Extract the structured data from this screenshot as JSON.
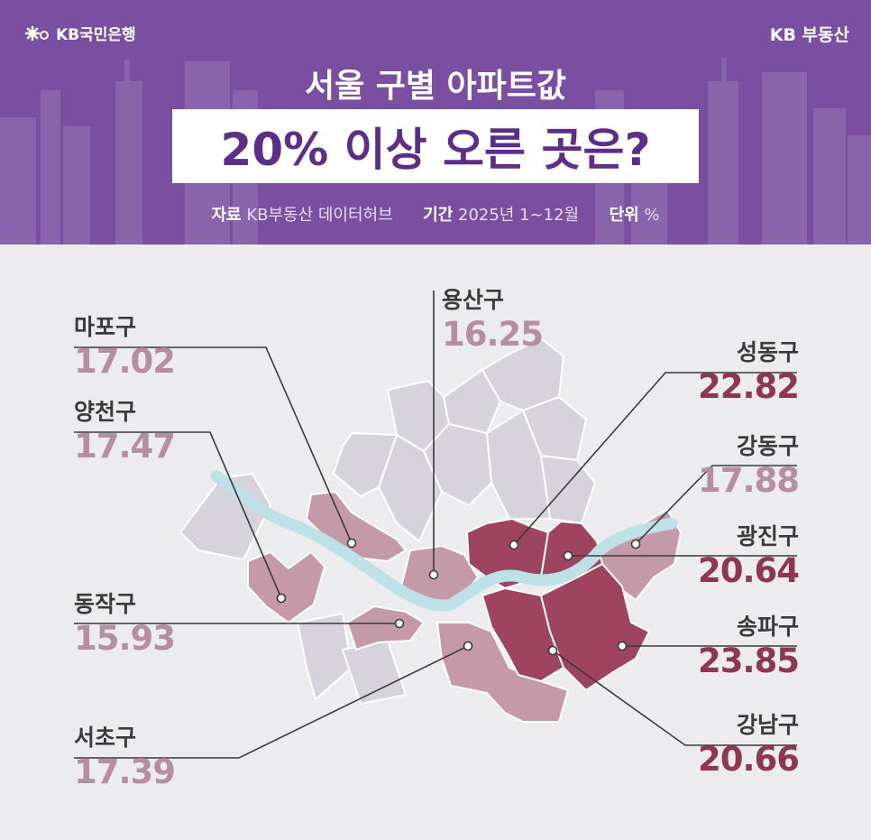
{
  "brand": {
    "left_logo": "KB국민은행",
    "right_logo": "KB 부동산"
  },
  "title": {
    "line1": "서울 구별 아파트값",
    "line2": "20% 이상 오른 곳은?"
  },
  "meta": {
    "source_label": "자료",
    "source": "KB부동산 데이터허브",
    "period_label": "기간",
    "period": "2025년 1~12월",
    "unit_label": "단위",
    "unit": "%"
  },
  "colors": {
    "header_bg": "#7a4fa1",
    "title_text": "#5b2e88",
    "highlight_dark": "#9e4460",
    "highlight_light": "#c49aa8",
    "base_district": "#d6d4da",
    "river": "#bde1e6"
  },
  "chart_data": {
    "type": "map",
    "title": "서울 구별 아파트값 20% 이상 오른 곳은?",
    "unit": "%",
    "districts": [
      {
        "name": "마포구",
        "value": "17.02",
        "tier": "light"
      },
      {
        "name": "양천구",
        "value": "17.47",
        "tier": "light"
      },
      {
        "name": "용산구",
        "value": "16.25",
        "tier": "light"
      },
      {
        "name": "동작구",
        "value": "15.93",
        "tier": "light"
      },
      {
        "name": "서초구",
        "value": "17.39",
        "tier": "light"
      },
      {
        "name": "성동구",
        "value": "22.82",
        "tier": "dark"
      },
      {
        "name": "강동구",
        "value": "17.88",
        "tier": "light"
      },
      {
        "name": "광진구",
        "value": "20.64",
        "tier": "dark"
      },
      {
        "name": "송파구",
        "value": "23.85",
        "tier": "dark"
      },
      {
        "name": "강남구",
        "value": "20.66",
        "tier": "dark"
      }
    ]
  }
}
